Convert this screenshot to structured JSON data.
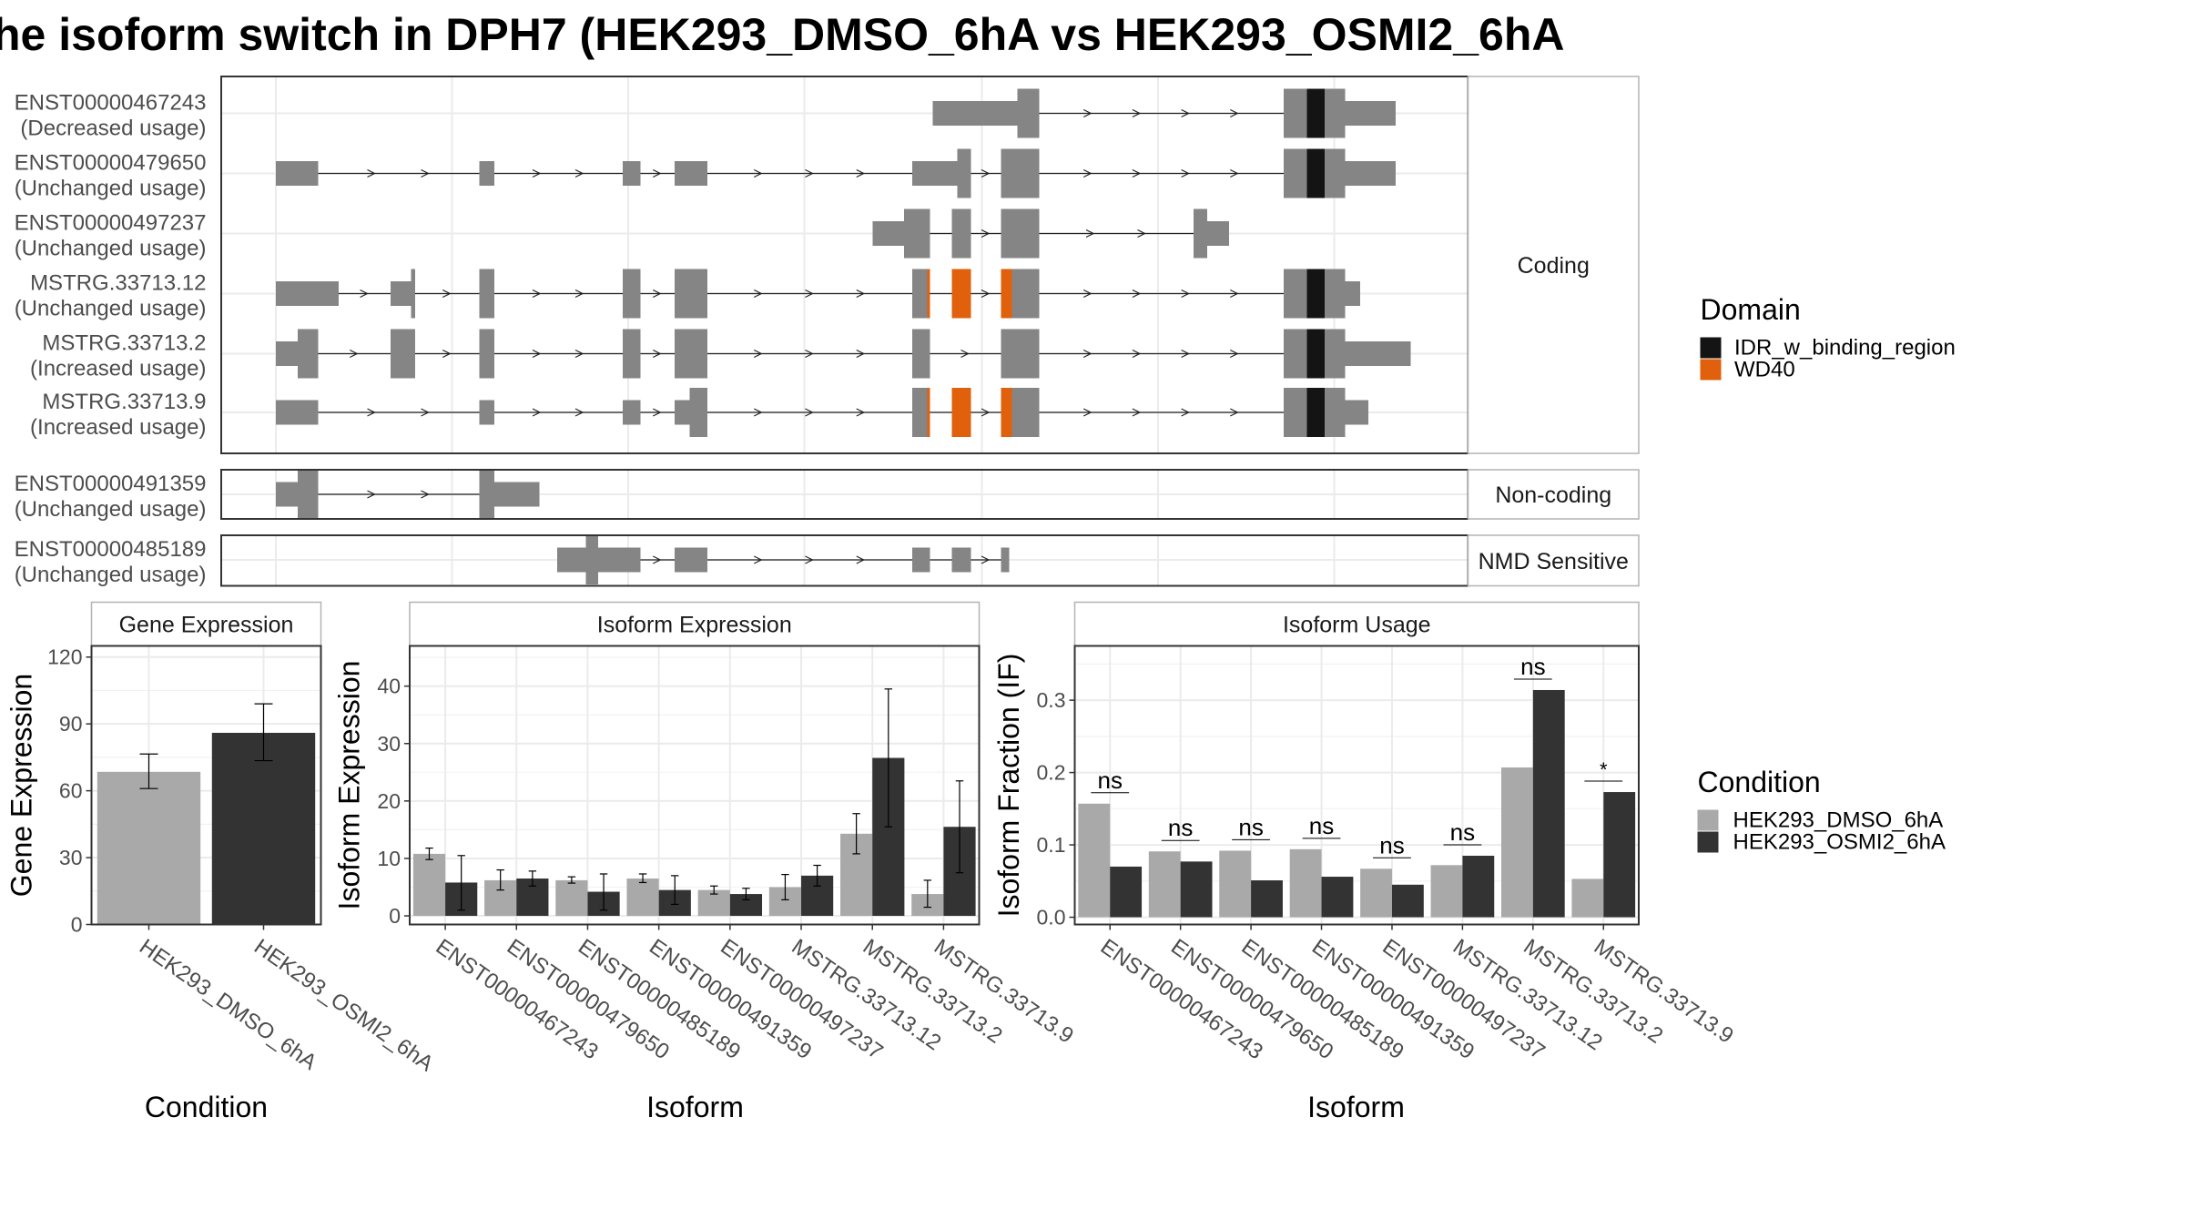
{
  "title": "he isoform switch in DPH7 (HEK293_DMSO_6hA vs HEK293_OSMI2_6hA",
  "colors": {
    "exon": "#858585",
    "idr": "#141414",
    "wd40": "#e0600c",
    "dmso": "#a9a9a9",
    "osmi": "#333333",
    "grid": "#ebebeb",
    "panel_border": "#333333",
    "strip_border": "#b3b3b3"
  },
  "transcripts": {
    "groups": [
      {
        "label": "Coding",
        "rows": [
          {
            "name": "ENST00000467243",
            "usage": "(Decreased usage)",
            "exons": [
              [
                683,
                745,
                "thin"
              ],
              [
                745,
                761,
                "thick"
              ],
              [
                940,
                957,
                "thick"
              ],
              [
                957,
                970,
                "thick",
                "idr"
              ],
              [
                970,
                985,
                "thick"
              ],
              [
                985,
                1022,
                "thin"
              ]
            ]
          },
          {
            "name": "ENST00000479650",
            "usage": "(Unchanged usage)",
            "exons": [
              [
                202,
                233,
                "thin"
              ],
              [
                351,
                362,
                "thin"
              ],
              [
                456,
                469,
                "thin"
              ],
              [
                494,
                518,
                "thin"
              ],
              [
                668,
                701,
                "thin"
              ],
              [
                701,
                711,
                "thick"
              ],
              [
                733,
                761,
                "thick"
              ],
              [
                940,
                957,
                "thick"
              ],
              [
                957,
                970,
                "thick",
                "idr"
              ],
              [
                970,
                985,
                "thick"
              ],
              [
                985,
                1022,
                "thin"
              ]
            ]
          },
          {
            "name": "ENST00000497237",
            "usage": "(Unchanged usage)",
            "exons": [
              [
                639,
                662,
                "thin"
              ],
              [
                662,
                681,
                "thick"
              ],
              [
                697,
                711,
                "thick"
              ],
              [
                733,
                761,
                "thick"
              ],
              [
                874,
                884,
                "thick"
              ],
              [
                884,
                900,
                "thin"
              ]
            ]
          },
          {
            "name": "MSTRG.33713.12",
            "usage": "(Unchanged usage)",
            "exons": [
              [
                202,
                248,
                "thin"
              ],
              [
                286,
                301,
                "thin"
              ],
              [
                301,
                304,
                "thick"
              ],
              [
                351,
                362,
                "thick"
              ],
              [
                456,
                469,
                "thick"
              ],
              [
                494,
                518,
                "thick"
              ],
              [
                668,
                679,
                "thick"
              ],
              [
                679,
                681,
                "thick",
                "wd40"
              ],
              [
                697,
                711,
                "thick",
                "wd40"
              ],
              [
                733,
                741,
                "thick",
                "wd40"
              ],
              [
                741,
                761,
                "thick"
              ],
              [
                940,
                957,
                "thick"
              ],
              [
                957,
                970,
                "thick",
                "idr"
              ],
              [
                970,
                985,
                "thick"
              ],
              [
                985,
                996,
                "thin"
              ]
            ]
          },
          {
            "name": "MSTRG.33713.2",
            "usage": "(Increased usage)",
            "exons": [
              [
                202,
                218,
                "thin"
              ],
              [
                218,
                233,
                "thick"
              ],
              [
                286,
                304,
                "thick"
              ],
              [
                351,
                362,
                "thick"
              ],
              [
                456,
                469,
                "thick"
              ],
              [
                494,
                518,
                "thick"
              ],
              [
                668,
                681,
                "thick"
              ],
              [
                733,
                761,
                "thick"
              ],
              [
                940,
                957,
                "thick"
              ],
              [
                957,
                970,
                "thick",
                "idr"
              ],
              [
                970,
                985,
                "thick"
              ],
              [
                985,
                1033,
                "thin"
              ]
            ]
          },
          {
            "name": "MSTRG.33713.9",
            "usage": "(Increased usage)",
            "exons": [
              [
                202,
                233,
                "thin"
              ],
              [
                351,
                362,
                "thin"
              ],
              [
                456,
                469,
                "thin"
              ],
              [
                494,
                505,
                "thin"
              ],
              [
                505,
                518,
                "thick"
              ],
              [
                668,
                679,
                "thick"
              ],
              [
                679,
                681,
                "thick",
                "wd40"
              ],
              [
                697,
                711,
                "thick",
                "wd40"
              ],
              [
                733,
                741,
                "thick",
                "wd40"
              ],
              [
                741,
                761,
                "thick"
              ],
              [
                940,
                957,
                "thick"
              ],
              [
                957,
                970,
                "thick",
                "idr"
              ],
              [
                970,
                985,
                "thick"
              ],
              [
                985,
                1002,
                "thin"
              ]
            ]
          }
        ]
      },
      {
        "label": "Non-coding",
        "rows": [
          {
            "name": "ENST00000491359",
            "usage": "(Unchanged usage)",
            "exons": [
              [
                202,
                218,
                "thin"
              ],
              [
                218,
                233,
                "thick"
              ],
              [
                351,
                362,
                "thick"
              ],
              [
                362,
                395,
                "thin"
              ]
            ]
          }
        ]
      },
      {
        "label": "NMD Sensitive",
        "rows": [
          {
            "name": "ENST00000485189",
            "usage": "(Unchanged usage)",
            "exons": [
              [
                408,
                429,
                "thin"
              ],
              [
                429,
                438,
                "thick"
              ],
              [
                438,
                469,
                "thin"
              ],
              [
                494,
                518,
                "thin"
              ],
              [
                668,
                681,
                "thin"
              ],
              [
                697,
                711,
                "thin"
              ],
              [
                733,
                739,
                "thin"
              ]
            ]
          }
        ]
      }
    ]
  },
  "legends": {
    "domain_title": "Domain",
    "domain_items": [
      "IDR_w_binding_region",
      "WD40"
    ],
    "condition_title": "Condition",
    "condition_items": [
      "HEK293_DMSO_6hA",
      "HEK293_OSMI2_6hA"
    ]
  },
  "chart_data": [
    {
      "type": "bar",
      "title": "Gene Expression",
      "xlabel": "Condition",
      "ylabel": "Gene Expression",
      "ylim": [
        0,
        125
      ],
      "yticks": [
        0,
        30,
        60,
        90,
        120
      ],
      "categories": [
        "HEK293_DMSO_6hA",
        "HEK293_OSMI2_6hA"
      ],
      "values": [
        68.5,
        86
      ],
      "errors": [
        [
          61,
          76.5
        ],
        [
          73.5,
          99
        ]
      ]
    },
    {
      "type": "bar",
      "title": "Isoform Expression",
      "xlabel": "Isoform",
      "ylabel": "Isoform Expression",
      "ylim": [
        -1.5,
        47
      ],
      "yticks": [
        0,
        10,
        20,
        30,
        40
      ],
      "categories": [
        "ENST00000467243",
        "ENST00000479650",
        "ENST00000485189",
        "ENST00000491359",
        "ENST00000497237",
        "MSTRG.33713.12",
        "MSTRG.33713.2",
        "MSTRG.33713.9"
      ],
      "series": [
        {
          "name": "HEK293_DMSO_6hA",
          "values": [
            10.8,
            6.2,
            6.2,
            6.5,
            4.5,
            5.0,
            14.3,
            3.8
          ],
          "errors": [
            [
              9.8,
              11.8
            ],
            [
              4.5,
              8.0
            ],
            [
              5.7,
              6.8
            ],
            [
              5.8,
              7.3
            ],
            [
              3.8,
              5.2
            ],
            [
              2.8,
              7.2
            ],
            [
              10.8,
              17.8
            ],
            [
              1.5,
              6.2
            ]
          ]
        },
        {
          "name": "HEK293_OSMI2_6hA",
          "values": [
            5.8,
            6.5,
            4.2,
            4.5,
            3.8,
            7.0,
            27.5,
            15.5
          ],
          "errors": [
            [
              1.0,
              10.5
            ],
            [
              5.2,
              7.8
            ],
            [
              1.0,
              7.3
            ],
            [
              2.0,
              7.0
            ],
            [
              2.8,
              4.8
            ],
            [
              5.2,
              8.8
            ],
            [
              15.5,
              39.5
            ],
            [
              7.5,
              23.5
            ]
          ]
        }
      ]
    },
    {
      "type": "bar",
      "title": "Isoform Usage",
      "xlabel": "Isoform",
      "ylabel": "Isoform Fraction (IF)",
      "ylim": [
        -0.01,
        0.375
      ],
      "yticks": [
        0.0,
        0.1,
        0.2,
        0.3
      ],
      "ytick_labels": [
        "0.0",
        "0.1",
        "0.2",
        "0.3"
      ],
      "categories": [
        "ENST00000467243",
        "ENST00000479650",
        "ENST00000485189",
        "ENST00000491359",
        "ENST00000497237",
        "MSTRG.33713.12",
        "MSTRG.33713.2",
        "MSTRG.33713.9"
      ],
      "series": [
        {
          "name": "HEK293_DMSO_6hA",
          "values": [
            0.157,
            0.091,
            0.092,
            0.094,
            0.067,
            0.072,
            0.207,
            0.053
          ]
        },
        {
          "name": "HEK293_OSMI2_6hA",
          "values": [
            0.07,
            0.077,
            0.051,
            0.056,
            0.045,
            0.085,
            0.314,
            0.173
          ]
        }
      ],
      "significance": [
        "ns",
        "ns",
        "ns",
        "ns",
        "ns",
        "ns",
        "ns",
        "*"
      ]
    }
  ]
}
